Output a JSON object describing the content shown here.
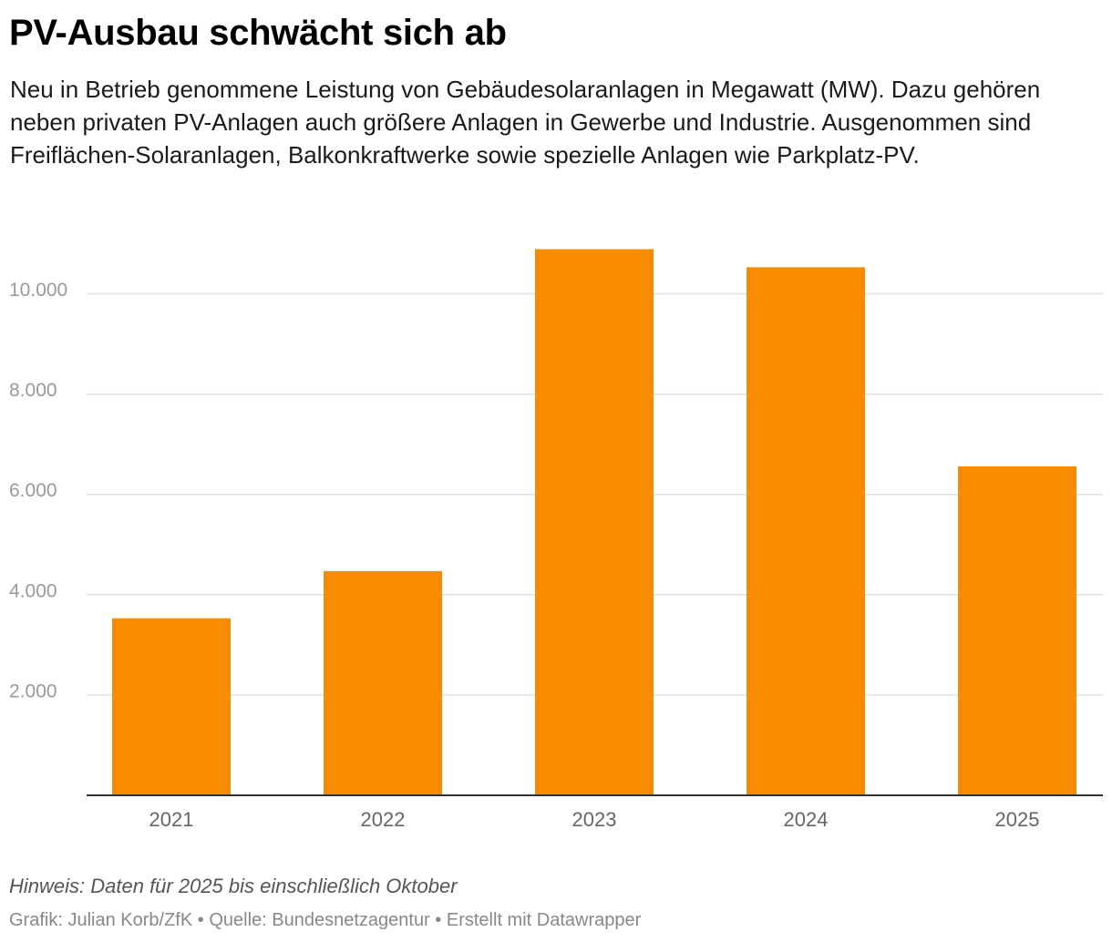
{
  "header": {
    "title": "PV-Ausbau schwächt sich ab",
    "subtitle": "Neu in Betrieb genommene Leistung von Gebäudesolaranlagen in Megawatt (MW). Dazu gehören neben privaten PV-Anlagen auch größere Anlagen in Gewerbe und Industrie. Ausgenommen sind Freiflächen-Solaranlagen, Balkonkraftwerke sowie spezielle Anlagen wie Parkplatz-PV."
  },
  "chart_data": {
    "type": "bar",
    "title": "PV-Ausbau schwächt sich ab",
    "xlabel": "",
    "ylabel": "",
    "categories": [
      "2021",
      "2022",
      "2023",
      "2024",
      "2025"
    ],
    "values": [
      3530,
      4470,
      10890,
      10530,
      6560
    ],
    "ylim": [
      0,
      11000
    ],
    "yticks": [
      2000,
      4000,
      6000,
      8000,
      10000
    ],
    "ytick_labels": [
      "2.000",
      "4.000",
      "6.000",
      "8.000",
      "10.000"
    ],
    "grid": true,
    "legend": "none",
    "bar_color": "#f78c00"
  },
  "footer": {
    "note": "Hinweis: Daten für 2025 bis einschließlich Oktober",
    "credit_graphic": "Grafik: Julian Korb/ZfK",
    "credit_source": "Quelle: Bundesnetzagentur",
    "credit_tool": "Erstellt mit Datawrapper",
    "separator": "•"
  },
  "colors": {
    "bar": "#f78c00",
    "grid": "#e0e0e0",
    "axis": "#333333",
    "tick_text": "#999999",
    "category_text": "#666666"
  }
}
